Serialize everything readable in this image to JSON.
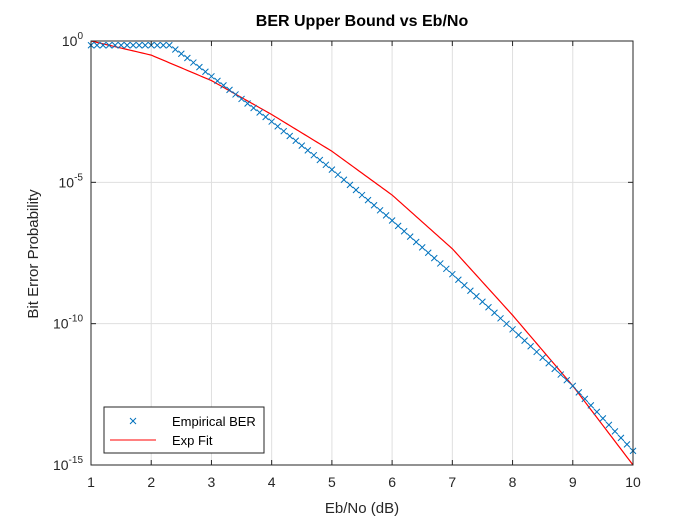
{
  "chart_data": {
    "type": "line",
    "title": "BER Upper Bound vs Eb/No",
    "xlabel": "Eb/No (dB)",
    "ylabel": "Bit Error Probability",
    "xlim": [
      1,
      10
    ],
    "ylim": [
      1e-15,
      1
    ],
    "yscale": "log",
    "grid": true,
    "legend_position": "bottom-left",
    "x_ticks": [
      "1",
      "2",
      "3",
      "4",
      "5",
      "6",
      "7",
      "8",
      "9",
      "10"
    ],
    "y_ticks": [
      {
        "base": "10",
        "exp": "0",
        "value": 1
      },
      {
        "base": "10",
        "exp": "-5",
        "value": 1e-05
      },
      {
        "base": "10",
        "exp": "-10",
        "value": 1e-10
      },
      {
        "base": "10",
        "exp": "-15",
        "value": 1e-15
      }
    ],
    "series": [
      {
        "name": "Empirical BER",
        "style": "markers",
        "marker": "x",
        "color": "#0072BD",
        "x_range": [
          1,
          10
        ],
        "x_step": 0.1,
        "log10_y_points": [
          [
            1.0,
            -0.15
          ],
          [
            2.3,
            -0.15
          ],
          [
            2.6,
            -0.6
          ],
          [
            3.0,
            -1.25
          ],
          [
            4.0,
            -2.85
          ],
          [
            5.0,
            -4.55
          ],
          [
            6.0,
            -6.35
          ],
          [
            7.0,
            -8.25
          ],
          [
            8.0,
            -10.2
          ],
          [
            9.0,
            -12.2
          ],
          [
            10.0,
            -14.5
          ]
        ]
      },
      {
        "name": "Exp Fit",
        "style": "line",
        "color": "#FF0000",
        "x_range": [
          1,
          10
        ],
        "log10_y_points": [
          [
            1.0,
            0.0
          ],
          [
            2.0,
            -0.5
          ],
          [
            3.0,
            -1.4
          ],
          [
            4.0,
            -2.6
          ],
          [
            5.0,
            -3.9
          ],
          [
            6.0,
            -5.45
          ],
          [
            7.0,
            -7.35
          ],
          [
            8.0,
            -9.7
          ],
          [
            9.0,
            -12.2
          ],
          [
            10.0,
            -15.0
          ]
        ]
      }
    ]
  }
}
